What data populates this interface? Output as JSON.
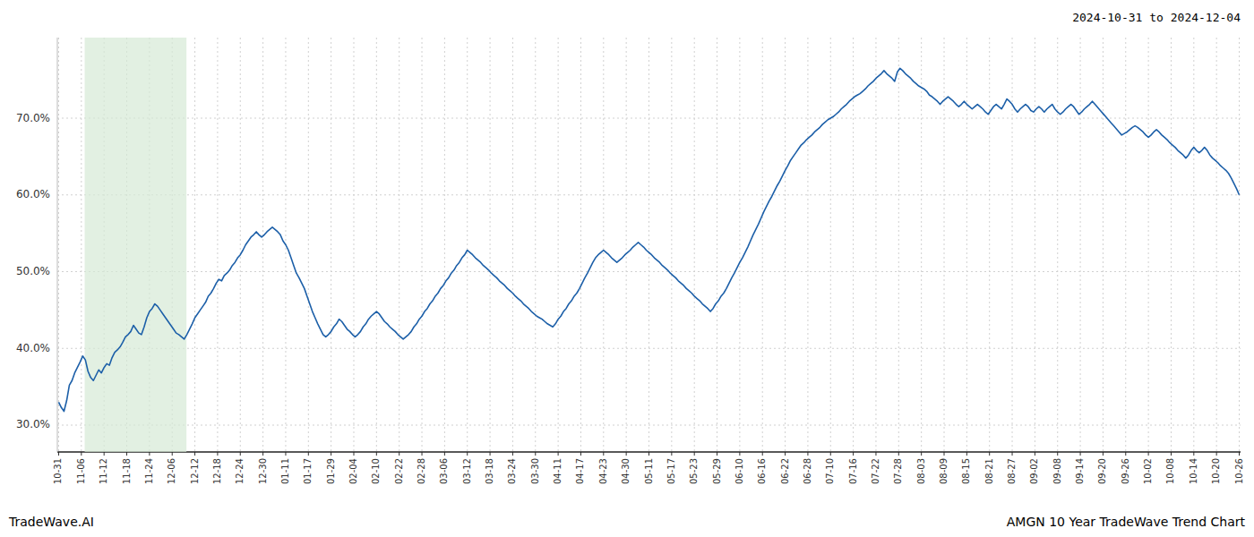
{
  "chart_data": {
    "type": "line",
    "title": "2024-10-31 to 2024-12-04",
    "annotations": [
      "TradeWave.AI",
      "AMGN 10 Year TradeWave Trend Chart"
    ],
    "color": "#1c5fa8",
    "grid": true,
    "highlight": {
      "x": [
        9.746,
        47.844
      ],
      "color": "#d6ead6"
    },
    "xlim": [
      -0.5,
      442.5
    ],
    "xticks": [
      {
        "value": 0,
        "label": "10-31"
      },
      {
        "value": 8.5,
        "label": "11-06"
      },
      {
        "value": 17,
        "label": "11-12"
      },
      {
        "value": 25.5,
        "label": "11-18"
      },
      {
        "value": 34,
        "label": "11-24"
      },
      {
        "value": 42.5,
        "label": "12-06"
      },
      {
        "value": 51,
        "label": "12-12"
      },
      {
        "value": 59.5,
        "label": "12-18"
      },
      {
        "value": 68,
        "label": "12-24"
      },
      {
        "value": 76.5,
        "label": "12-30"
      },
      {
        "value": 85,
        "label": "01-11"
      },
      {
        "value": 93.5,
        "label": "01-17"
      },
      {
        "value": 102,
        "label": "01-29"
      },
      {
        "value": 110.5,
        "label": "02-04"
      },
      {
        "value": 119,
        "label": "02-10"
      },
      {
        "value": 127.5,
        "label": "02-22"
      },
      {
        "value": 136,
        "label": "02-28"
      },
      {
        "value": 144.5,
        "label": "03-06"
      },
      {
        "value": 153,
        "label": "03-12"
      },
      {
        "value": 161.5,
        "label": "03-18"
      },
      {
        "value": 170,
        "label": "03-24"
      },
      {
        "value": 178.5,
        "label": "03-30"
      },
      {
        "value": 187,
        "label": "04-11"
      },
      {
        "value": 195.5,
        "label": "04-17"
      },
      {
        "value": 204,
        "label": "04-23"
      },
      {
        "value": 212.5,
        "label": "04-30"
      },
      {
        "value": 221,
        "label": "05-11"
      },
      {
        "value": 229.5,
        "label": "05-17"
      },
      {
        "value": 238,
        "label": "05-23"
      },
      {
        "value": 246.5,
        "label": "05-29"
      },
      {
        "value": 255,
        "label": "06-10"
      },
      {
        "value": 263.5,
        "label": "06-16"
      },
      {
        "value": 272,
        "label": "06-22"
      },
      {
        "value": 280.5,
        "label": "06-28"
      },
      {
        "value": 289,
        "label": "07-10"
      },
      {
        "value": 297.5,
        "label": "07-16"
      },
      {
        "value": 306,
        "label": "07-22"
      },
      {
        "value": 314.5,
        "label": "07-28"
      },
      {
        "value": 323,
        "label": "08-03"
      },
      {
        "value": 331.5,
        "label": "08-09"
      },
      {
        "value": 340,
        "label": "08-15"
      },
      {
        "value": 348.5,
        "label": "08-21"
      },
      {
        "value": 357,
        "label": "08-27"
      },
      {
        "value": 365.5,
        "label": "09-02"
      },
      {
        "value": 374,
        "label": "09-08"
      },
      {
        "value": 382.5,
        "label": "09-14"
      },
      {
        "value": 391,
        "label": "09-20"
      },
      {
        "value": 399.5,
        "label": "09-26"
      },
      {
        "value": 408,
        "label": "10-02"
      },
      {
        "value": 416.5,
        "label": "10-08"
      },
      {
        "value": 425,
        "label": "10-14"
      },
      {
        "value": 433.5,
        "label": "10-20"
      },
      {
        "value": 442,
        "label": "10-26"
      }
    ],
    "ylim": [
      0.265,
      0.805
    ],
    "yticks": [
      {
        "value": 0.3,
        "label": "30.0%"
      },
      {
        "value": 0.4,
        "label": "40.0%"
      },
      {
        "value": 0.5,
        "label": "50.0%"
      },
      {
        "value": 0.6,
        "label": "60.0%"
      },
      {
        "value": 0.7,
        "label": "70.0%"
      }
    ],
    "values": [
      0.33,
      0.323,
      0.318,
      0.332,
      0.352,
      0.358,
      0.368,
      0.375,
      0.382,
      0.39,
      0.385,
      0.37,
      0.362,
      0.358,
      0.365,
      0.372,
      0.368,
      0.375,
      0.38,
      0.378,
      0.388,
      0.395,
      0.398,
      0.402,
      0.408,
      0.415,
      0.418,
      0.422,
      0.43,
      0.425,
      0.42,
      0.418,
      0.428,
      0.44,
      0.448,
      0.452,
      0.458,
      0.455,
      0.45,
      0.445,
      0.44,
      0.435,
      0.43,
      0.425,
      0.42,
      0.418,
      0.415,
      0.412,
      0.418,
      0.425,
      0.432,
      0.44,
      0.445,
      0.45,
      0.455,
      0.46,
      0.468,
      0.472,
      0.478,
      0.485,
      0.49,
      0.488,
      0.495,
      0.498,
      0.502,
      0.508,
      0.512,
      0.518,
      0.522,
      0.528,
      0.535,
      0.54,
      0.545,
      0.548,
      0.552,
      0.548,
      0.545,
      0.548,
      0.552,
      0.555,
      0.558,
      0.555,
      0.552,
      0.548,
      0.54,
      0.535,
      0.528,
      0.518,
      0.508,
      0.498,
      0.492,
      0.485,
      0.478,
      0.468,
      0.458,
      0.448,
      0.44,
      0.432,
      0.425,
      0.418,
      0.415,
      0.418,
      0.422,
      0.428,
      0.432,
      0.438,
      0.435,
      0.43,
      0.425,
      0.422,
      0.418,
      0.415,
      0.418,
      0.422,
      0.428,
      0.432,
      0.438,
      0.442,
      0.445,
      0.448,
      0.445,
      0.44,
      0.435,
      0.432,
      0.428,
      0.425,
      0.422,
      0.418,
      0.415,
      0.412,
      0.415,
      0.418,
      0.422,
      0.428,
      0.432,
      0.438,
      0.442,
      0.448,
      0.452,
      0.458,
      0.462,
      0.468,
      0.472,
      0.478,
      0.482,
      0.488,
      0.492,
      0.498,
      0.502,
      0.508,
      0.512,
      0.518,
      0.522,
      0.528,
      0.525,
      0.522,
      0.518,
      0.515,
      0.512,
      0.508,
      0.505,
      0.502,
      0.498,
      0.495,
      0.492,
      0.488,
      0.485,
      0.482,
      0.478,
      0.475,
      0.472,
      0.468,
      0.465,
      0.462,
      0.458,
      0.455,
      0.452,
      0.448,
      0.445,
      0.442,
      0.44,
      0.438,
      0.435,
      0.432,
      0.43,
      0.428,
      0.432,
      0.438,
      0.442,
      0.448,
      0.452,
      0.458,
      0.462,
      0.468,
      0.472,
      0.478,
      0.485,
      0.492,
      0.498,
      0.505,
      0.512,
      0.518,
      0.522,
      0.525,
      0.528,
      0.525,
      0.522,
      0.518,
      0.515,
      0.512,
      0.515,
      0.518,
      0.522,
      0.525,
      0.528,
      0.532,
      0.535,
      0.538,
      0.535,
      0.532,
      0.528,
      0.525,
      0.522,
      0.518,
      0.515,
      0.512,
      0.508,
      0.505,
      0.502,
      0.498,
      0.495,
      0.492,
      0.488,
      0.485,
      0.482,
      0.478,
      0.475,
      0.472,
      0.468,
      0.465,
      0.462,
      0.458,
      0.455,
      0.452,
      0.448,
      0.452,
      0.458,
      0.462,
      0.468,
      0.472,
      0.478,
      0.485,
      0.492,
      0.498,
      0.505,
      0.512,
      0.518,
      0.525,
      0.532,
      0.54,
      0.548,
      0.555,
      0.562,
      0.57,
      0.578,
      0.585,
      0.592,
      0.598,
      0.605,
      0.612,
      0.618,
      0.625,
      0.632,
      0.638,
      0.645,
      0.65,
      0.655,
      0.66,
      0.665,
      0.668,
      0.672,
      0.675,
      0.678,
      0.682,
      0.685,
      0.688,
      0.692,
      0.695,
      0.698,
      0.7,
      0.702,
      0.705,
      0.708,
      0.712,
      0.715,
      0.718,
      0.722,
      0.725,
      0.728,
      0.73,
      0.732,
      0.735,
      0.738,
      0.742,
      0.745,
      0.748,
      0.752,
      0.755,
      0.758,
      0.762,
      0.758,
      0.755,
      0.752,
      0.748,
      0.76,
      0.765,
      0.762,
      0.758,
      0.755,
      0.752,
      0.748,
      0.745,
      0.742,
      0.74,
      0.738,
      0.735,
      0.73,
      0.728,
      0.725,
      0.722,
      0.718,
      0.722,
      0.725,
      0.728,
      0.725,
      0.722,
      0.718,
      0.715,
      0.718,
      0.722,
      0.718,
      0.715,
      0.712,
      0.715,
      0.718,
      0.715,
      0.712,
      0.708,
      0.705,
      0.71,
      0.715,
      0.718,
      0.715,
      0.712,
      0.718,
      0.725,
      0.722,
      0.718,
      0.712,
      0.708,
      0.712,
      0.715,
      0.718,
      0.715,
      0.71,
      0.708,
      0.712,
      0.715,
      0.712,
      0.708,
      0.712,
      0.715,
      0.718,
      0.712,
      0.708,
      0.705,
      0.708,
      0.712,
      0.715,
      0.718,
      0.715,
      0.71,
      0.705,
      0.708,
      0.712,
      0.715,
      0.718,
      0.722,
      0.718,
      0.714,
      0.71,
      0.706,
      0.702,
      0.698,
      0.694,
      0.69,
      0.686,
      0.682,
      0.678,
      0.68,
      0.682,
      0.685,
      0.688,
      0.69,
      0.688,
      0.685,
      0.682,
      0.678,
      0.675,
      0.678,
      0.682,
      0.685,
      0.682,
      0.678,
      0.675,
      0.672,
      0.668,
      0.665,
      0.662,
      0.658,
      0.655,
      0.652,
      0.648,
      0.652,
      0.658,
      0.662,
      0.658,
      0.655,
      0.658,
      0.662,
      0.658,
      0.652,
      0.648,
      0.645,
      0.642,
      0.638,
      0.635,
      0.632,
      0.628,
      0.622,
      0.615,
      0.608,
      0.6
    ]
  }
}
